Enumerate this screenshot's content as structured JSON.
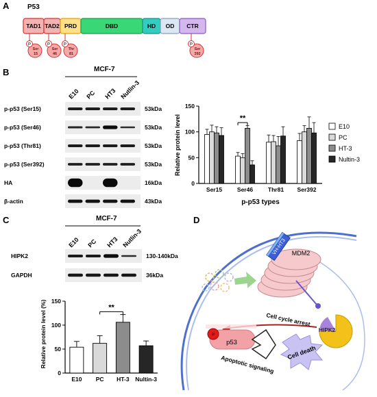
{
  "panels": {
    "a": "A",
    "b": "B",
    "c": "C",
    "d": "D"
  },
  "panel_a": {
    "title": "P53",
    "domains": [
      {
        "label": "TAD1",
        "fill": "#f4b3b3",
        "stroke": "#d93030"
      },
      {
        "label": "TAD2",
        "fill": "#f4b3b3",
        "stroke": "#d93030"
      },
      {
        "label": "PRD",
        "fill": "#ffe08a",
        "stroke": "#e4a400"
      },
      {
        "label": "DBD",
        "fill": "#39d776",
        "stroke": "#1a9c4c"
      },
      {
        "label": "HD",
        "fill": "#34cbc0",
        "stroke": "#16928a"
      },
      {
        "label": "OD",
        "fill": "#dbe7f2",
        "stroke": "#8aa0b8"
      },
      {
        "label": "CTR",
        "fill": "#d4b7ee",
        "stroke": "#8a5cc0"
      }
    ],
    "sites": [
      {
        "p": "P",
        "line1": "Ser",
        "line2": "15"
      },
      {
        "p": "P",
        "line1": "Ser",
        "line2": "46"
      },
      {
        "p": "P",
        "line1": "Thr",
        "line2": "81"
      },
      {
        "p": "P",
        "line1": "Ser",
        "line2": "392"
      }
    ]
  },
  "panel_b": {
    "cell_line": "MCF-7",
    "lanes": [
      "E10",
      "PC",
      "HT3",
      "Nutlin-3"
    ],
    "rows": [
      {
        "label": "p-p53 (Ser15)",
        "kda": "53kDa",
        "bands": [
          0.7,
          0.7,
          0.7,
          0.7
        ]
      },
      {
        "label": "p-p53 (Ser46)",
        "kda": "53kDa",
        "bands": [
          0.55,
          0.5,
          0.95,
          0.45
        ]
      },
      {
        "label": "p-p53 (Thr81)",
        "kda": "53kDa",
        "bands": [
          0.7,
          0.7,
          0.7,
          0.7
        ]
      },
      {
        "label": "p-p53 (Ser392)",
        "kda": "53kDa",
        "bands": [
          0.65,
          0.65,
          0.65,
          0.65
        ]
      },
      {
        "label": "HA",
        "kda": "16kDa",
        "bands": [
          1.0,
          0,
          1.0,
          0
        ]
      },
      {
        "label": "β-actin",
        "kda": "43kDa",
        "bands": [
          0.85,
          0.85,
          0.85,
          0.85
        ]
      }
    ]
  },
  "panel_c": {
    "cell_line": "MCF-7",
    "lanes": [
      "E10",
      "PC",
      "HT3",
      "Nutlin-3"
    ],
    "rows": [
      {
        "label": "HIPK2",
        "kda": "130-140kDa",
        "bands": [
          0.7,
          0.7,
          0.95,
          0.45
        ]
      },
      {
        "label": "GAPDH",
        "kda": "36kDa",
        "bands": [
          0.8,
          0.8,
          0.8,
          0.8
        ]
      }
    ]
  },
  "panel_d": {
    "hht3": "VH-HT3",
    "mdm2": "MDM2",
    "hipk2": "HIPK2",
    "p_label": "P",
    "p53": "p53",
    "cell_cycle": "Cell cycle arrest",
    "apoptotic": "Apoptotic signaling",
    "cell_death": "Cell death"
  },
  "chart_data": [
    {
      "type": "bar",
      "title": "",
      "xlabel": "p-p53 types",
      "ylabel": "Relative protein level",
      "ylim": [
        0,
        150
      ],
      "yticks": [
        0,
        50,
        100,
        150
      ],
      "categories": [
        "Ser15",
        "Ser46",
        "Thr81",
        "Ser392"
      ],
      "series": [
        {
          "name": "E10",
          "color": "#ffffff",
          "values": [
            95,
            53,
            80,
            83
          ],
          "errors": [
            10,
            7,
            14,
            14
          ]
        },
        {
          "name": "PC",
          "color": "#d9d9d9",
          "values": [
            100,
            50,
            81,
            100
          ],
          "errors": [
            13,
            8,
            12,
            12
          ]
        },
        {
          "name": "HT-3",
          "color": "#8c8c8c",
          "values": [
            98,
            107,
            73,
            107
          ],
          "errors": [
            12,
            5,
            18,
            22
          ]
        },
        {
          "name": "Nultin-3",
          "color": "#262626",
          "values": [
            93,
            36,
            92,
            98
          ],
          "errors": [
            15,
            8,
            18,
            20
          ]
        }
      ],
      "significance": "**",
      "legend_position": "right"
    },
    {
      "type": "bar",
      "title": "",
      "xlabel": "",
      "ylabel": "Relative protein level (%)",
      "ylim": [
        0,
        150
      ],
      "yticks": [
        0,
        50,
        100,
        150
      ],
      "categories": [
        "E10",
        "PC",
        "HT-3",
        "Nultin-3"
      ],
      "values": [
        54,
        62,
        106,
        57
      ],
      "errors": [
        12,
        16,
        16,
        10
      ],
      "colors": [
        "#ffffff",
        "#d9d9d9",
        "#8c8c8c",
        "#262626"
      ],
      "significance": "**"
    }
  ]
}
